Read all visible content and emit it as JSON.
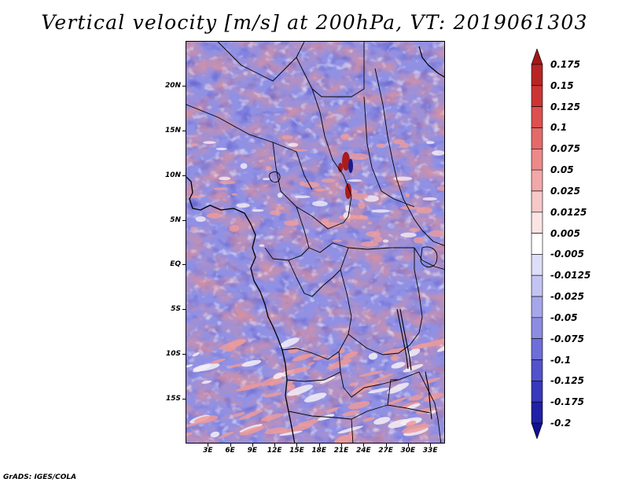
{
  "title": "Vertical velocity [m/s] at 200hPa, VT: 2019061303",
  "credit": "GrADS: IGES/COLA",
  "map": {
    "lon_range": [
      0,
      35
    ],
    "lat_range": [
      -20,
      25
    ],
    "lat_ticks": [
      {
        "value": 20,
        "label": "20N"
      },
      {
        "value": 15,
        "label": "15N"
      },
      {
        "value": 10,
        "label": "10N"
      },
      {
        "value": 5,
        "label": "5N"
      },
      {
        "value": 0,
        "label": "EQ"
      },
      {
        "value": -5,
        "label": "5S"
      },
      {
        "value": -10,
        "label": "10S"
      },
      {
        "value": -15,
        "label": "15S"
      }
    ],
    "lon_ticks": [
      {
        "value": 3,
        "label": "3E"
      },
      {
        "value": 6,
        "label": "6E"
      },
      {
        "value": 9,
        "label": "9E"
      },
      {
        "value": 12,
        "label": "12E"
      },
      {
        "value": 15,
        "label": "15E"
      },
      {
        "value": 18,
        "label": "18E"
      },
      {
        "value": 21,
        "label": "21E"
      },
      {
        "value": 24,
        "label": "24E"
      },
      {
        "value": 27,
        "label": "27E"
      },
      {
        "value": 30,
        "label": "30E"
      },
      {
        "value": 33,
        "label": "33E"
      }
    ]
  },
  "colorbar": {
    "labels": [
      "0.175",
      "0.15",
      "0.125",
      "0.1",
      "0.075",
      "0.05",
      "0.025",
      "0.0125",
      "0.005",
      "-0.005",
      "-0.0125",
      "-0.025",
      "-0.05",
      "-0.075",
      "-0.1",
      "-0.125",
      "-0.175",
      "-0.2"
    ],
    "colors": [
      "#a01818",
      "#b82424",
      "#cc3434",
      "#dd5050",
      "#e46a6a",
      "#ec8a8a",
      "#f2a8a8",
      "#f7c8c8",
      "#fbe4e4",
      "#ffffff",
      "#dedef8",
      "#c4c4f2",
      "#a6a6ea",
      "#8c8ce2",
      "#6e6eda",
      "#5252cc",
      "#3838bc",
      "#2020a8",
      "#10108e"
    ]
  }
}
